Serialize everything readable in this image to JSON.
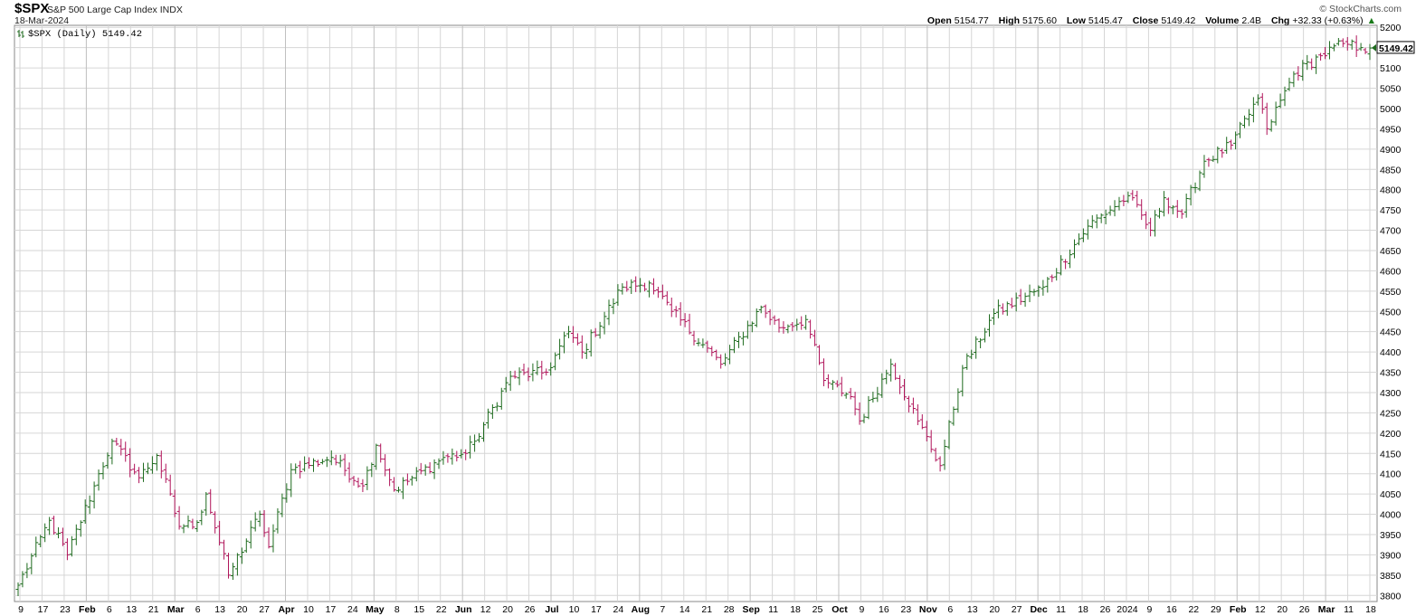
{
  "header": {
    "symbol": "$SPX",
    "description": "S&P 500 Large Cap Index",
    "exchange": "INDX",
    "date": "18-Mar-2024",
    "brand": "© StockCharts.com",
    "open_label": "Open",
    "open": "5154.77",
    "high_label": "High",
    "high": "5175.60",
    "low_label": "Low",
    "low": "5145.47",
    "close_label": "Close",
    "close": "5149.42",
    "volume_label": "Volume",
    "volume": "2.4B",
    "chg_label": "Chg",
    "chg": "+32.33 (+0.63%)",
    "chg_arrow": "▲"
  },
  "legend": {
    "label": "$SPX (Daily) 5149.42"
  },
  "price_tag": "5149.42",
  "colors": {
    "up": "#1f6b1f",
    "down": "#b0145a",
    "grid": "#d6d6d6"
  },
  "chart_data": {
    "type": "ohlc",
    "grid": true,
    "ylim": [
      3785,
      5205
    ],
    "y_ticks": [
      3800,
      3850,
      3900,
      3950,
      4000,
      4050,
      4100,
      4150,
      4200,
      4250,
      4300,
      4350,
      4400,
      4450,
      4500,
      4550,
      4600,
      4650,
      4700,
      4750,
      4800,
      4850,
      4900,
      4950,
      5000,
      5050,
      5100,
      5150,
      5200
    ],
    "x_ticks": [
      "9",
      "17",
      "23",
      "Feb",
      "6",
      "13",
      "21",
      "Mar",
      "6",
      "13",
      "20",
      "27",
      "Apr",
      "10",
      "17",
      "24",
      "May",
      "8",
      "15",
      "22",
      "Jun",
      "12",
      "20",
      "26",
      "Jul",
      "10",
      "17",
      "24",
      "Aug",
      "7",
      "14",
      "21",
      "28",
      "Sep",
      "11",
      "18",
      "25",
      "Oct",
      "9",
      "16",
      "23",
      "Nov",
      "6",
      "13",
      "20",
      "27",
      "Dec",
      "11",
      "18",
      "26",
      "2024",
      "9",
      "16",
      "22",
      "29",
      "Feb",
      "12",
      "20",
      "26",
      "Mar",
      "11",
      "18"
    ],
    "x_ticks_bold": [
      "Feb",
      "Mar",
      "Apr",
      "May",
      "Jun",
      "Jul",
      "Aug",
      "Sep",
      "Oct",
      "Nov",
      "Dec",
      "2024",
      "Feb",
      "Mar"
    ],
    "anchors": [
      [
        "2023-01-03",
        3825
      ],
      [
        "2023-01-12",
        3985
      ],
      [
        "2023-01-19",
        3900
      ],
      [
        "2023-01-27",
        4070
      ],
      [
        "2023-02-02",
        4180
      ],
      [
        "2023-02-10",
        4090
      ],
      [
        "2023-02-16",
        4145
      ],
      [
        "2023-02-24",
        3970
      ],
      [
        "2023-03-02",
        3980
      ],
      [
        "2023-03-06",
        4050
      ],
      [
        "2023-03-13",
        3850
      ],
      [
        "2023-03-22",
        4000
      ],
      [
        "2023-03-24",
        3920
      ],
      [
        "2023-03-31",
        4110
      ],
      [
        "2023-04-14",
        4140
      ],
      [
        "2023-04-25",
        4070
      ],
      [
        "2023-04-28",
        4170
      ],
      [
        "2023-05-04",
        4060
      ],
      [
        "2023-05-19",
        4140
      ],
      [
        "2023-05-26",
        4150
      ],
      [
        "2023-05-31",
        4180
      ],
      [
        "2023-06-12",
        4340
      ],
      [
        "2023-06-23",
        4350
      ],
      [
        "2023-06-30",
        4450
      ],
      [
        "2023-07-06",
        4400
      ],
      [
        "2023-07-19",
        4560
      ],
      [
        "2023-07-27",
        4570
      ],
      [
        "2023-08-03",
        4500
      ],
      [
        "2023-08-18",
        4370
      ],
      [
        "2023-08-31",
        4510
      ],
      [
        "2023-09-07",
        4460
      ],
      [
        "2023-09-15",
        4480
      ],
      [
        "2023-09-21",
        4330
      ],
      [
        "2023-09-29",
        4290
      ],
      [
        "2023-10-03",
        4230
      ],
      [
        "2023-10-12",
        4370
      ],
      [
        "2023-10-20",
        4230
      ],
      [
        "2023-10-27",
        4120
      ],
      [
        "2023-11-03",
        4360
      ],
      [
        "2023-11-14",
        4495
      ],
      [
        "2023-11-30",
        4560
      ],
      [
        "2023-12-14",
        4710
      ],
      [
        "2023-12-28",
        4785
      ],
      [
        "2024-01-05",
        4700
      ],
      [
        "2024-01-10",
        4780
      ],
      [
        "2024-01-17",
        4740
      ],
      [
        "2024-01-24",
        4870
      ],
      [
        "2024-02-01",
        4910
      ],
      [
        "2024-02-09",
        5025
      ],
      [
        "2024-02-13",
        4950
      ],
      [
        "2024-02-22",
        5085
      ],
      [
        "2024-03-01",
        5130
      ],
      [
        "2024-03-08",
        5160
      ],
      [
        "2024-03-14",
        5150
      ],
      [
        "2024-03-18",
        5149
      ]
    ],
    "series": [
      {
        "name": "$SPX (Daily)",
        "last": 5149.42
      }
    ]
  }
}
